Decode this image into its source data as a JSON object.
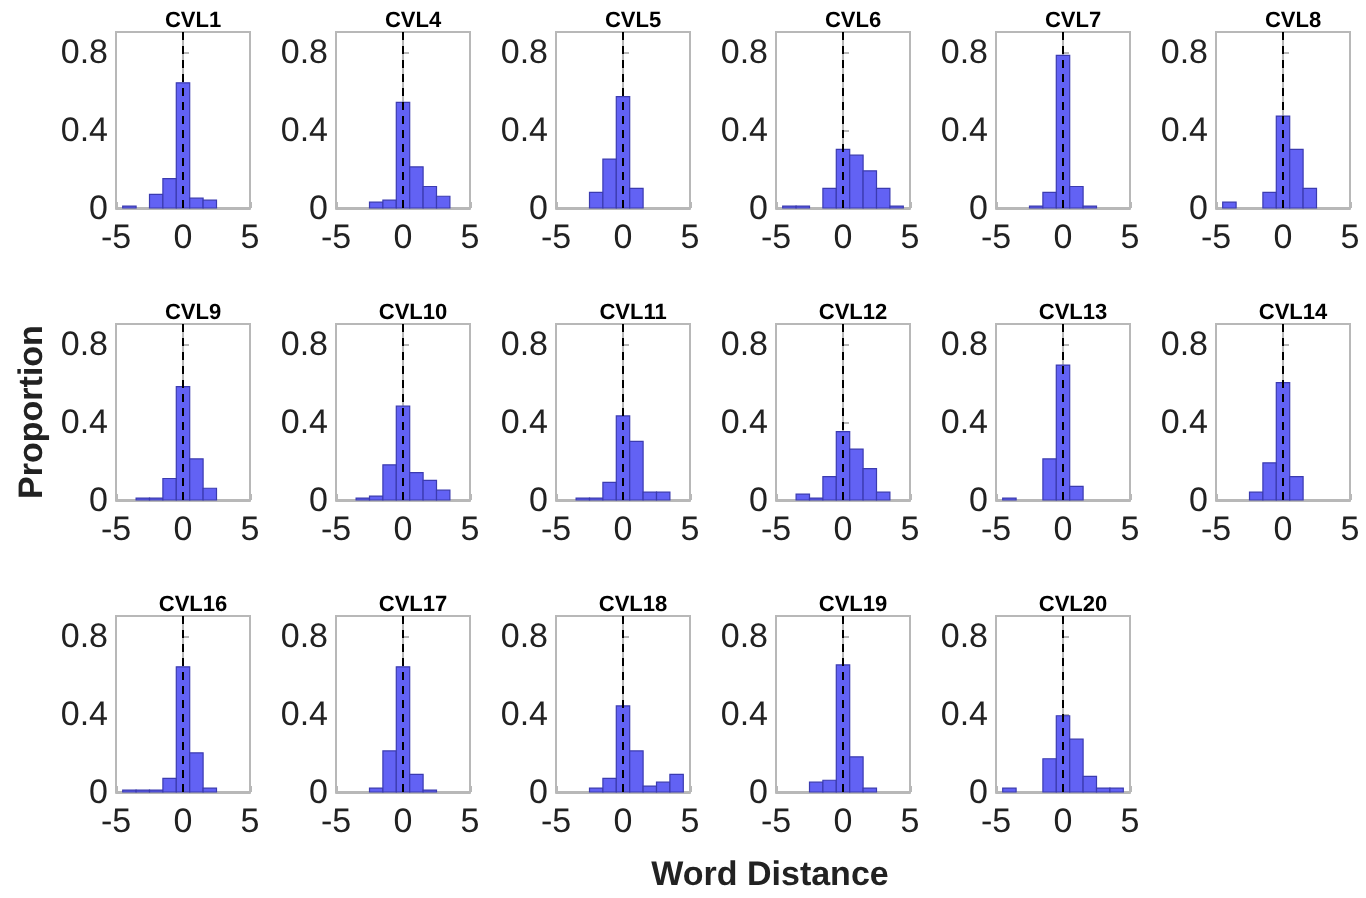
{
  "chart_data": [
    {
      "type": "histogram",
      "title": "CVL1",
      "bins": [
        -4.5,
        -3.5,
        -2.5,
        -1.5,
        -0.5,
        0.5,
        1.5,
        2.5,
        3.5,
        4.5
      ],
      "values": [
        0.01,
        0,
        0.07,
        0.15,
        0.64,
        0.05,
        0.04,
        0,
        0
      ],
      "color": "#6262f4",
      "xlim": [
        -5,
        5
      ],
      "ylim": [
        0,
        0.9
      ],
      "xticks": [
        -5,
        0,
        5
      ],
      "yticks": [
        0,
        0.4,
        0.8
      ],
      "ref_lines": [
        {
          "axis": "x",
          "value": 0,
          "line_style": "dashed",
          "color": "#000000"
        }
      ]
    },
    {
      "type": "histogram",
      "title": "CVL4",
      "bins": [
        -4.5,
        -3.5,
        -2.5,
        -1.5,
        -0.5,
        0.5,
        1.5,
        2.5,
        3.5,
        4.5
      ],
      "values": [
        0,
        0,
        0.03,
        0.04,
        0.54,
        0.21,
        0.11,
        0.06,
        0
      ],
      "color": "#6262f4",
      "xlim": [
        -5,
        5
      ],
      "ylim": [
        0,
        0.9
      ],
      "xticks": [
        -5,
        0,
        5
      ],
      "yticks": [
        0,
        0.4,
        0.8
      ],
      "ref_lines": [
        {
          "axis": "x",
          "value": 0,
          "line_style": "dashed",
          "color": "#000000"
        }
      ]
    },
    {
      "type": "histogram",
      "title": "CVL5",
      "bins": [
        -4.5,
        -3.5,
        -2.5,
        -1.5,
        -0.5,
        0.5,
        1.5,
        2.5,
        3.5,
        4.5
      ],
      "values": [
        0,
        0,
        0.08,
        0.25,
        0.57,
        0.1,
        0,
        0,
        0
      ],
      "color": "#6262f4",
      "xlim": [
        -5,
        5
      ],
      "ylim": [
        0,
        0.9
      ],
      "xticks": [
        -5,
        0,
        5
      ],
      "yticks": [
        0,
        0.4,
        0.8
      ],
      "ref_lines": [
        {
          "axis": "x",
          "value": 0,
          "line_style": "dashed",
          "color": "#000000"
        }
      ]
    },
    {
      "type": "histogram",
      "title": "CVL6",
      "bins": [
        -4.5,
        -3.5,
        -2.5,
        -1.5,
        -0.5,
        0.5,
        1.5,
        2.5,
        3.5,
        4.5
      ],
      "values": [
        0.01,
        0.01,
        0,
        0.1,
        0.3,
        0.27,
        0.19,
        0.1,
        0.01
      ],
      "color": "#6262f4",
      "xlim": [
        -5,
        5
      ],
      "ylim": [
        0,
        0.9
      ],
      "xticks": [
        -5,
        0,
        5
      ],
      "yticks": [
        0,
        0.4,
        0.8
      ],
      "ref_lines": [
        {
          "axis": "x",
          "value": 0,
          "line_style": "dashed",
          "color": "#000000"
        }
      ]
    },
    {
      "type": "histogram",
      "title": "CVL7",
      "bins": [
        -4.5,
        -3.5,
        -2.5,
        -1.5,
        -0.5,
        0.5,
        1.5,
        2.5,
        3.5,
        4.5
      ],
      "values": [
        0,
        0,
        0.01,
        0.08,
        0.78,
        0.11,
        0.01,
        0,
        0
      ],
      "color": "#6262f4",
      "xlim": [
        -5,
        5
      ],
      "ylim": [
        0,
        0.9
      ],
      "xticks": [
        -5,
        0,
        5
      ],
      "yticks": [
        0,
        0.4,
        0.8
      ],
      "ref_lines": [
        {
          "axis": "x",
          "value": 0,
          "line_style": "dashed",
          "color": "#000000"
        }
      ]
    },
    {
      "type": "histogram",
      "title": "CVL8",
      "bins": [
        -4.5,
        -3.5,
        -2.5,
        -1.5,
        -0.5,
        0.5,
        1.5,
        2.5,
        3.5,
        4.5
      ],
      "values": [
        0.03,
        0,
        0,
        0.08,
        0.47,
        0.3,
        0.1,
        0,
        0
      ],
      "color": "#6262f4",
      "xlim": [
        -5,
        5
      ],
      "ylim": [
        0,
        0.9
      ],
      "xticks": [
        -5,
        0,
        5
      ],
      "yticks": [
        0,
        0.4,
        0.8
      ],
      "ref_lines": [
        {
          "axis": "x",
          "value": 0,
          "line_style": "dashed",
          "color": "#000000"
        }
      ]
    },
    {
      "type": "histogram",
      "title": "CVL9",
      "ylabel": "Proportion",
      "bins": [
        -4.5,
        -3.5,
        -2.5,
        -1.5,
        -0.5,
        0.5,
        1.5,
        2.5,
        3.5,
        4.5
      ],
      "values": [
        0,
        0.01,
        0.01,
        0.11,
        0.58,
        0.21,
        0.06,
        0,
        0
      ],
      "color": "#6262f4",
      "xlim": [
        -5,
        5
      ],
      "ylim": [
        0,
        0.9
      ],
      "xticks": [
        -5,
        0,
        5
      ],
      "yticks": [
        0,
        0.4,
        0.8
      ],
      "ref_lines": [
        {
          "axis": "x",
          "value": 0,
          "line_style": "dashed",
          "color": "#000000"
        }
      ]
    },
    {
      "type": "histogram",
      "title": "CVL10",
      "bins": [
        -4.5,
        -3.5,
        -2.5,
        -1.5,
        -0.5,
        0.5,
        1.5,
        2.5,
        3.5,
        4.5
      ],
      "values": [
        0,
        0.01,
        0.02,
        0.18,
        0.48,
        0.14,
        0.1,
        0.05,
        0
      ],
      "color": "#6262f4",
      "xlim": [
        -5,
        5
      ],
      "ylim": [
        0,
        0.9
      ],
      "xticks": [
        -5,
        0,
        5
      ],
      "yticks": [
        0,
        0.4,
        0.8
      ],
      "ref_lines": [
        {
          "axis": "x",
          "value": 0,
          "line_style": "dashed",
          "color": "#000000"
        }
      ]
    },
    {
      "type": "histogram",
      "title": "CVL11",
      "bins": [
        -4.5,
        -3.5,
        -2.5,
        -1.5,
        -0.5,
        0.5,
        1.5,
        2.5,
        3.5,
        4.5
      ],
      "values": [
        0,
        0.01,
        0.01,
        0.09,
        0.43,
        0.3,
        0.04,
        0.04,
        0
      ],
      "color": "#6262f4",
      "xlim": [
        -5,
        5
      ],
      "ylim": [
        0,
        0.9
      ],
      "xticks": [
        -5,
        0,
        5
      ],
      "yticks": [
        0,
        0.4,
        0.8
      ],
      "ref_lines": [
        {
          "axis": "x",
          "value": 0,
          "line_style": "dashed",
          "color": "#000000"
        }
      ]
    },
    {
      "type": "histogram",
      "title": "CVL12",
      "bins": [
        -4.5,
        -3.5,
        -2.5,
        -1.5,
        -0.5,
        0.5,
        1.5,
        2.5,
        3.5,
        4.5
      ],
      "values": [
        0,
        0.03,
        0.01,
        0.12,
        0.35,
        0.26,
        0.16,
        0.04,
        0
      ],
      "color": "#6262f4",
      "xlim": [
        -5,
        5
      ],
      "ylim": [
        0,
        0.9
      ],
      "xticks": [
        -5,
        0,
        5
      ],
      "yticks": [
        0,
        0.4,
        0.8
      ],
      "ref_lines": [
        {
          "axis": "x",
          "value": 0,
          "line_style": "dashed",
          "color": "#000000"
        }
      ]
    },
    {
      "type": "histogram",
      "title": "CVL13",
      "bins": [
        -4.5,
        -3.5,
        -2.5,
        -1.5,
        -0.5,
        0.5,
        1.5,
        2.5,
        3.5,
        4.5
      ],
      "values": [
        0.01,
        0,
        0,
        0.21,
        0.69,
        0.07,
        0,
        0,
        0
      ],
      "color": "#6262f4",
      "xlim": [
        -5,
        5
      ],
      "ylim": [
        0,
        0.9
      ],
      "xticks": [
        -5,
        0,
        5
      ],
      "yticks": [
        0,
        0.4,
        0.8
      ],
      "ref_lines": [
        {
          "axis": "x",
          "value": 0,
          "line_style": "dashed",
          "color": "#000000"
        }
      ]
    },
    {
      "type": "histogram",
      "title": "CVL14",
      "bins": [
        -4.5,
        -3.5,
        -2.5,
        -1.5,
        -0.5,
        0.5,
        1.5,
        2.5,
        3.5,
        4.5
      ],
      "values": [
        0,
        0,
        0.04,
        0.19,
        0.6,
        0.12,
        0,
        0,
        0
      ],
      "color": "#6262f4",
      "xlim": [
        -5,
        5
      ],
      "ylim": [
        0,
        0.9
      ],
      "xticks": [
        -5,
        0,
        5
      ],
      "yticks": [
        0,
        0.4,
        0.8
      ],
      "ref_lines": [
        {
          "axis": "x",
          "value": 0,
          "line_style": "dashed",
          "color": "#000000"
        }
      ]
    },
    {
      "type": "histogram",
      "title": "CVL16",
      "bins": [
        -4.5,
        -3.5,
        -2.5,
        -1.5,
        -0.5,
        0.5,
        1.5,
        2.5,
        3.5,
        4.5
      ],
      "values": [
        0.01,
        0.01,
        0.01,
        0.07,
        0.64,
        0.2,
        0.02,
        0,
        0
      ],
      "color": "#6262f4",
      "xlim": [
        -5,
        5
      ],
      "ylim": [
        0,
        0.9
      ],
      "xticks": [
        -5,
        0,
        5
      ],
      "yticks": [
        0,
        0.4,
        0.8
      ],
      "ref_lines": [
        {
          "axis": "x",
          "value": 0,
          "line_style": "dashed",
          "color": "#000000"
        }
      ]
    },
    {
      "type": "histogram",
      "title": "CVL17",
      "bins": [
        -4.5,
        -3.5,
        -2.5,
        -1.5,
        -0.5,
        0.5,
        1.5,
        2.5,
        3.5,
        4.5
      ],
      "values": [
        0,
        0,
        0.02,
        0.21,
        0.64,
        0.09,
        0.01,
        0,
        0
      ],
      "color": "#6262f4",
      "xlim": [
        -5,
        5
      ],
      "ylim": [
        0,
        0.9
      ],
      "xticks": [
        -5,
        0,
        5
      ],
      "yticks": [
        0,
        0.4,
        0.8
      ],
      "ref_lines": [
        {
          "axis": "x",
          "value": 0,
          "line_style": "dashed",
          "color": "#000000"
        }
      ]
    },
    {
      "type": "histogram",
      "title": "CVL18",
      "xlabel": "Word Distance",
      "bins": [
        -4.5,
        -3.5,
        -2.5,
        -1.5,
        -0.5,
        0.5,
        1.5,
        2.5,
        3.5,
        4.5
      ],
      "values": [
        0,
        0,
        0.02,
        0.07,
        0.44,
        0.21,
        0.03,
        0.05,
        0.09
      ],
      "color": "#6262f4",
      "xlim": [
        -5,
        5
      ],
      "ylim": [
        0,
        0.9
      ],
      "xticks": [
        -5,
        0,
        5
      ],
      "yticks": [
        0,
        0.4,
        0.8
      ],
      "ref_lines": [
        {
          "axis": "x",
          "value": 0,
          "line_style": "dashed",
          "color": "#000000"
        }
      ]
    },
    {
      "type": "histogram",
      "title": "CVL19",
      "bins": [
        -4.5,
        -3.5,
        -2.5,
        -1.5,
        -0.5,
        0.5,
        1.5,
        2.5,
        3.5,
        4.5
      ],
      "values": [
        0,
        0,
        0.05,
        0.06,
        0.65,
        0.18,
        0.02,
        0,
        0
      ],
      "color": "#6262f4",
      "xlim": [
        -5,
        5
      ],
      "ylim": [
        0,
        0.9
      ],
      "xticks": [
        -5,
        0,
        5
      ],
      "yticks": [
        0,
        0.4,
        0.8
      ],
      "ref_lines": [
        {
          "axis": "x",
          "value": 0,
          "line_style": "dashed",
          "color": "#000000"
        }
      ]
    },
    {
      "type": "histogram",
      "title": "CVL20",
      "bins": [
        -4.5,
        -3.5,
        -2.5,
        -1.5,
        -0.5,
        0.5,
        1.5,
        2.5,
        3.5,
        4.5
      ],
      "values": [
        0.02,
        0,
        0,
        0.17,
        0.39,
        0.27,
        0.08,
        0.02,
        0.02
      ],
      "color": "#6262f4",
      "xlim": [
        -5,
        5
      ],
      "ylim": [
        0,
        0.9
      ],
      "xticks": [
        -5,
        0,
        5
      ],
      "yticks": [
        0,
        0.4,
        0.8
      ],
      "ref_lines": [
        {
          "axis": "x",
          "value": 0,
          "line_style": "dashed",
          "color": "#000000"
        }
      ]
    }
  ]
}
